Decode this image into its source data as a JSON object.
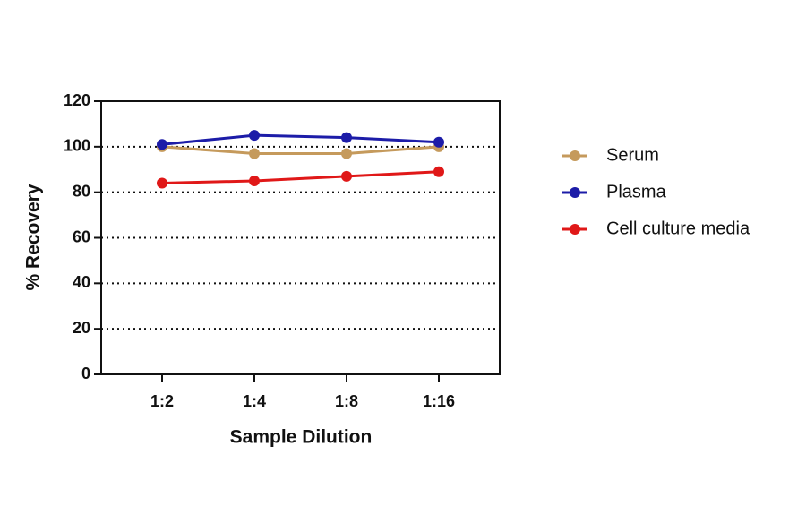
{
  "chart_data": {
    "type": "line",
    "x_label": "Sample Dilution",
    "y_label": "% Recovery",
    "categories": [
      "1:2",
      "1:4",
      "1:8",
      "1:16"
    ],
    "series": [
      {
        "name": "Serum",
        "color": "#c59a5c",
        "values": [
          100,
          97,
          97,
          100
        ]
      },
      {
        "name": "Plasma",
        "color": "#1c1ca8",
        "values": [
          101,
          105,
          104,
          102
        ]
      },
      {
        "name": "Cell culture media",
        "color": "#e01818",
        "values": [
          84,
          85,
          87,
          89
        ]
      }
    ],
    "ylim": [
      0,
      120
    ],
    "yticks": [
      0,
      20,
      40,
      60,
      80,
      100,
      120
    ],
    "grid": true
  }
}
